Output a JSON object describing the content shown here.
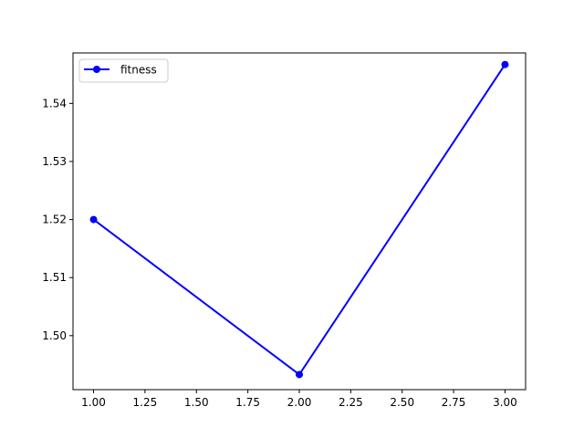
{
  "chart_data": {
    "type": "line",
    "title": "",
    "xlabel": "",
    "ylabel": "",
    "xlim": [
      0.9,
      3.1
    ],
    "ylim": [
      1.4907,
      1.5487
    ],
    "x_ticks": [
      1.0,
      1.25,
      1.5,
      1.75,
      2.0,
      2.25,
      2.5,
      2.75,
      3.0
    ],
    "x_tick_labels": [
      "1.00",
      "1.25",
      "1.50",
      "1.75",
      "2.00",
      "2.25",
      "2.50",
      "2.75",
      "3.00"
    ],
    "y_ticks": [
      1.5,
      1.51,
      1.52,
      1.53,
      1.54
    ],
    "y_tick_labels": [
      "1.50",
      "1.51",
      "1.52",
      "1.53",
      "1.54"
    ],
    "grid": false,
    "legend_position": "top-left",
    "series": [
      {
        "name": "fitness",
        "color": "#0000ff",
        "marker": "circle",
        "x": [
          1,
          2,
          3
        ],
        "y": [
          1.52,
          1.4933,
          1.5467
        ]
      }
    ]
  }
}
